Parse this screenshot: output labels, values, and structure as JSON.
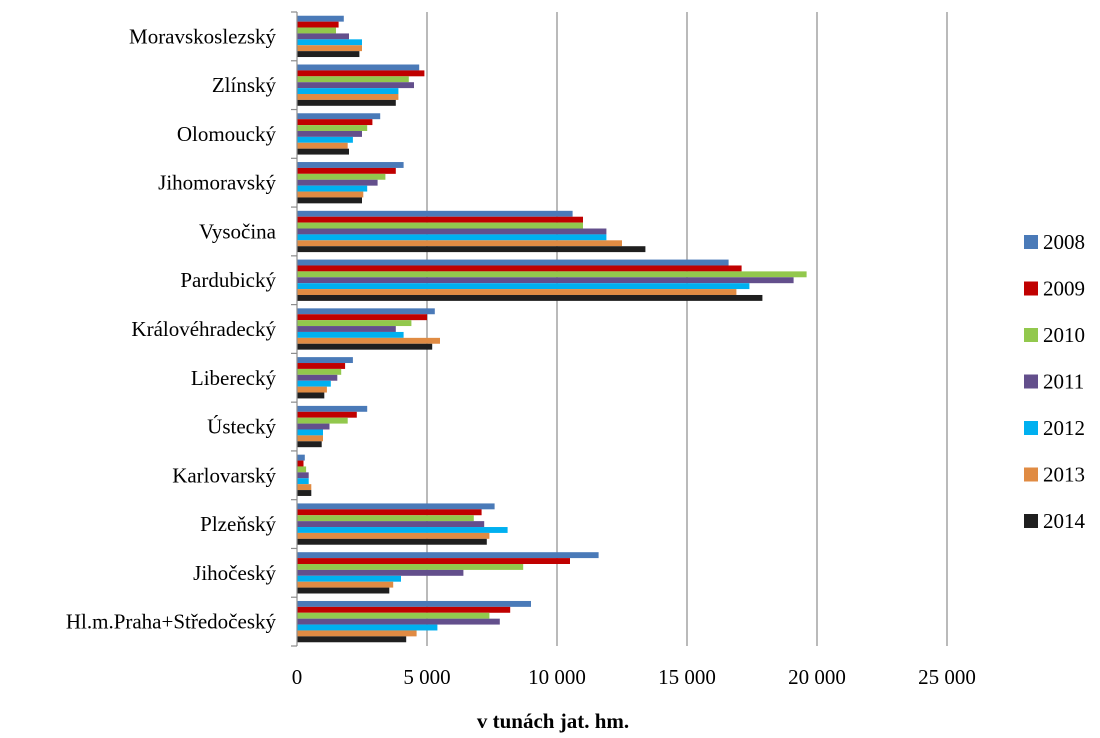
{
  "chart_data": {
    "type": "bar",
    "orientation": "horizontal",
    "xlabel": "v tunách jat. hm.",
    "xlim": [
      0,
      25000
    ],
    "xticks": [
      0,
      5000,
      10000,
      15000,
      20000,
      25000
    ],
    "xtick_labels": [
      "0",
      "5 000",
      "10 000",
      "15 000",
      "20 000",
      "25 000"
    ],
    "grid": true,
    "legend_position": "right",
    "categories": [
      "Moravskoslezský",
      "Zlínský",
      "Olomoucký",
      "Jihomoravský",
      "Vysočina",
      "Pardubický",
      "Královéhradecký",
      "Liberecký",
      "Ústecký",
      "Karlovarský",
      "Plzeňský",
      "Jihočeský",
      "Hl.m.Praha+Středočeský"
    ],
    "series": [
      {
        "name": "2008",
        "color": "#4a7ab8",
        "values": [
          1800,
          4700,
          3200,
          4100,
          10600,
          16600,
          5300,
          2150,
          2700,
          300,
          7600,
          11600,
          9000
        ]
      },
      {
        "name": "2009",
        "color": "#c00000",
        "values": [
          1600,
          4900,
          2900,
          3800,
          11000,
          17100,
          5000,
          1850,
          2300,
          250,
          7100,
          10500,
          8200
        ]
      },
      {
        "name": "2010",
        "color": "#92c84d",
        "values": [
          1500,
          4300,
          2700,
          3400,
          11000,
          19600,
          4400,
          1700,
          1950,
          350,
          6800,
          8700,
          7400
        ]
      },
      {
        "name": "2011",
        "color": "#634f8c",
        "values": [
          2000,
          4500,
          2500,
          3100,
          11900,
          19100,
          3800,
          1550,
          1250,
          450,
          7200,
          6400,
          7800
        ]
      },
      {
        "name": "2012",
        "color": "#00b0f0",
        "values": [
          2500,
          3900,
          2150,
          2700,
          11900,
          17400,
          4100,
          1300,
          1000,
          450,
          8100,
          4000,
          5400
        ]
      },
      {
        "name": "2013",
        "color": "#e08b43",
        "values": [
          2500,
          3900,
          1950,
          2550,
          12500,
          16900,
          5500,
          1150,
          1000,
          550,
          7400,
          3700,
          4600
        ]
      },
      {
        "name": "2014",
        "color": "#1f1f1f",
        "values": [
          2400,
          3800,
          2000,
          2500,
          13400,
          17900,
          5200,
          1050,
          950,
          550,
          7300,
          3550,
          4200
        ]
      }
    ]
  }
}
